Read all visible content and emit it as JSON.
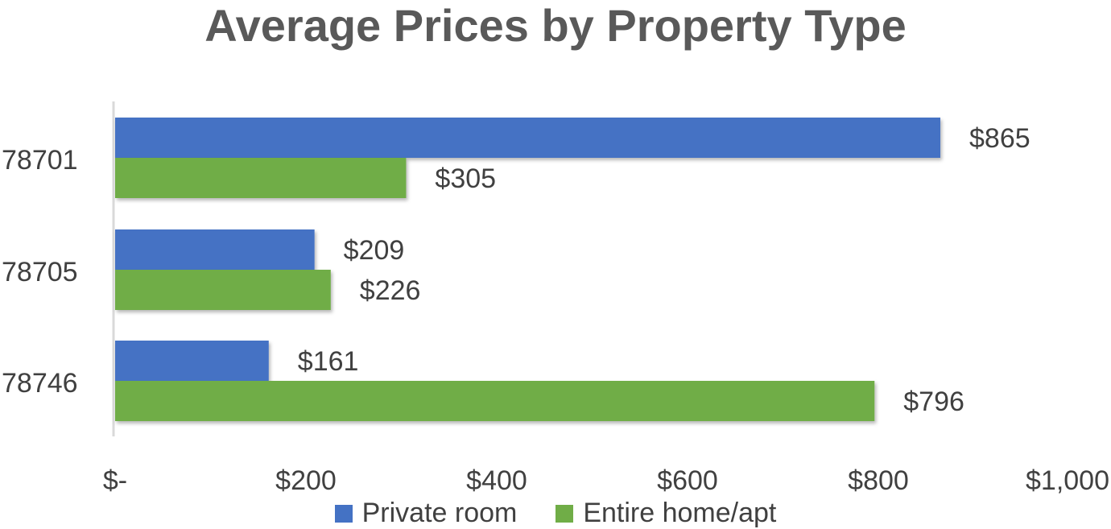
{
  "chart_data": {
    "type": "bar",
    "orientation": "horizontal",
    "title": "Average Prices by Property Type",
    "categories": [
      "78701",
      "78705",
      "78746"
    ],
    "series": [
      {
        "name": "Private room",
        "color": "#4472C4",
        "values": [
          865,
          209,
          161
        ],
        "labels": [
          "$865",
          "$209",
          "$161"
        ]
      },
      {
        "name": "Entire home/apt",
        "color": "#70AD47",
        "values": [
          305,
          226,
          796
        ],
        "labels": [
          "$305",
          "$226",
          "$796"
        ]
      }
    ],
    "xlim": [
      0,
      1000
    ],
    "x_ticks": [
      0,
      200,
      400,
      600,
      800,
      1000
    ],
    "x_tick_labels": [
      "$-",
      "$200",
      "$400",
      "$600",
      "$800",
      "$1,000"
    ],
    "grid": false,
    "legend_position": "bottom"
  }
}
